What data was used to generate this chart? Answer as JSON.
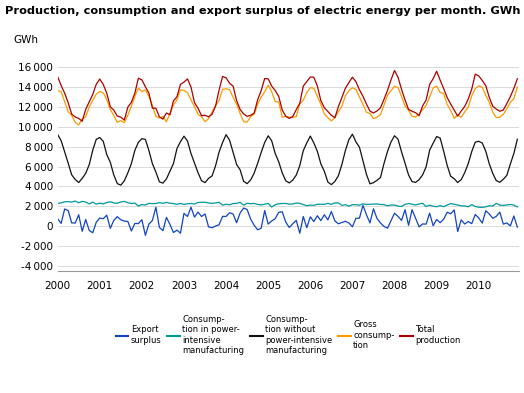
{
  "title": "Production, consumption and export surplus of electric energy per month. GWh",
  "ylabel": "GWh",
  "ylim": [
    -4500,
    17000
  ],
  "yticks": [
    -4000,
    -2000,
    0,
    2000,
    4000,
    6000,
    8000,
    10000,
    12000,
    14000,
    16000
  ],
  "colors": {
    "export_surplus": "#1144BB",
    "consumption_power": "#009999",
    "consumption_no_power": "#111111",
    "gross_consumption": "#FF9900",
    "total_production": "#AA0000"
  },
  "legend_labels": [
    "Export\nsurplus",
    "Consump-\ntion in power-\nintensive\nmanufacturing",
    "Consump-\ntion without\npower-intensive\nmanufacturing",
    "Gross\nconsump-\ntion",
    "Total\nproduction"
  ]
}
